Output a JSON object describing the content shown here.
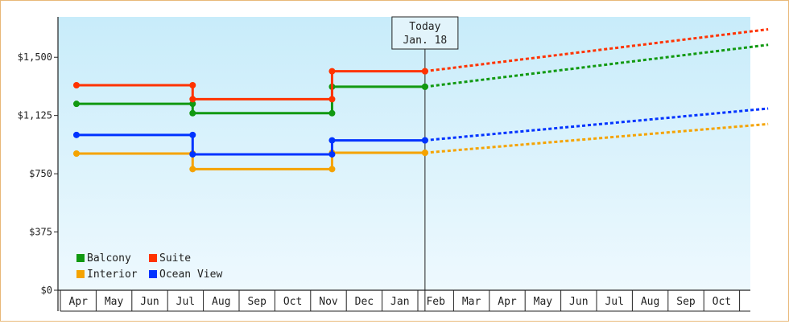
{
  "chart_data": {
    "type": "line",
    "title": "",
    "xlabel": "",
    "ylabel": "",
    "ylim": [
      0,
      1760
    ],
    "y_ticks": [
      0,
      375,
      750,
      1125,
      1500
    ],
    "y_tick_labels": [
      "$0",
      "$375",
      "$750",
      "$1,125",
      "$1,500"
    ],
    "x_tick_labels": [
      "Apr",
      "May",
      "Jun",
      "Jul",
      "Aug",
      "Sep",
      "Oct",
      "Nov",
      "Dec",
      "Jan",
      "Feb",
      "Mar",
      "Apr",
      "May",
      "Jun",
      "Jul",
      "Aug",
      "Sep",
      "Oct"
    ],
    "today_index": 9.7,
    "today_label_line1": "Today",
    "today_label_line2": "Jan. 18",
    "legend_position": "bottom-left",
    "grid": false,
    "forecast_end_index": 19.3,
    "series": [
      {
        "name": "Balcony",
        "color": "#119911",
        "steps": [
          [
            -0.05,
            1200
          ],
          [
            3.2,
            1140
          ],
          [
            7.1,
            1310
          ],
          [
            9.7,
            1310
          ]
        ],
        "forecast_end_value": 1580
      },
      {
        "name": "Suite",
        "color": "#ff3300",
        "steps": [
          [
            -0.05,
            1320
          ],
          [
            3.2,
            1230
          ],
          [
            7.1,
            1410
          ],
          [
            9.7,
            1410
          ]
        ],
        "forecast_end_value": 1680
      },
      {
        "name": "Interior",
        "color": "#f5a300",
        "steps": [
          [
            -0.05,
            880
          ],
          [
            3.2,
            780
          ],
          [
            7.1,
            885
          ],
          [
            9.7,
            885
          ]
        ],
        "forecast_end_value": 1070
      },
      {
        "name": "Ocean View",
        "color": "#0033ff",
        "steps": [
          [
            -0.05,
            1000
          ],
          [
            3.2,
            875
          ],
          [
            7.1,
            965
          ],
          [
            9.7,
            965
          ]
        ],
        "forecast_end_value": 1170
      }
    ]
  }
}
